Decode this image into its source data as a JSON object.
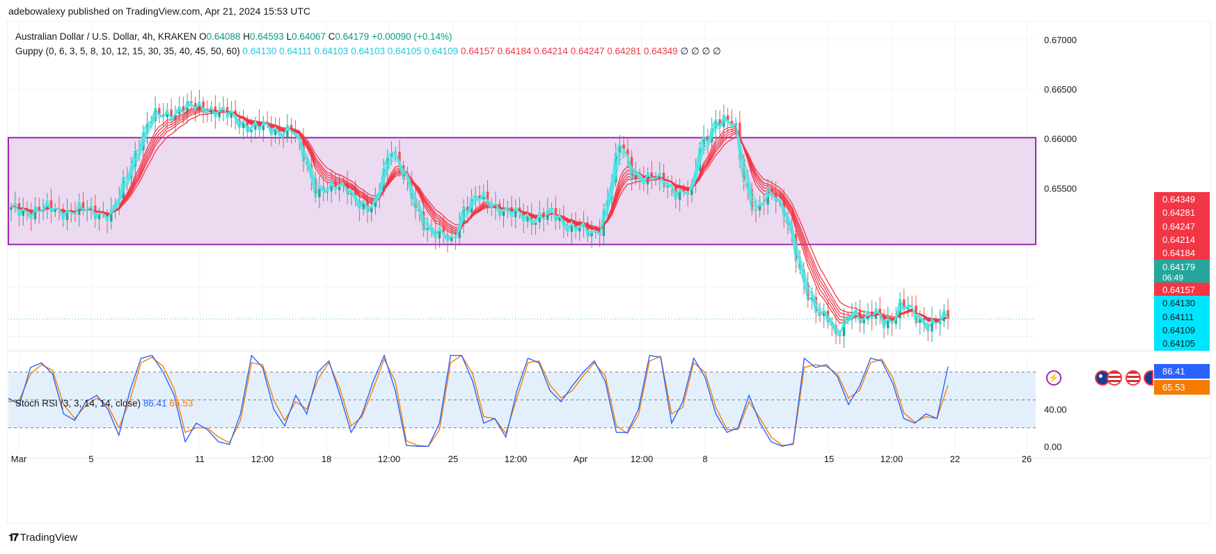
{
  "publisher": "adebowalexy published on TradingView.com, Apr 21, 2024 15:53 UTC",
  "logo": {
    "text": "TradingView",
    "icon": "tradingview-logo-icon"
  },
  "legend_main": {
    "symbol": "Australian Dollar / U.S. Dollar, 4h, KRAKEN",
    "o_label": "O",
    "o": "0.64088",
    "h_label": "H",
    "h": "0.64593",
    "l_label": "L",
    "l": "0.64067",
    "c_label": "C",
    "c": "0.64179",
    "change": "+0.00090 (+0.14%)"
  },
  "legend_guppy": {
    "name": "Guppy (0, 6, 3, 5, 8, 10, 12, 15, 30, 35, 40, 45, 50, 60)",
    "short_values": [
      "0.64130",
      "0.64111",
      "0.64103",
      "0.64103",
      "0.64105",
      "0.64109"
    ],
    "long_values": [
      "0.64157",
      "0.64184",
      "0.64214",
      "0.64247",
      "0.64281",
      "0.64349"
    ],
    "empty_values": [
      "∅",
      "∅",
      "∅",
      "∅"
    ]
  },
  "legend_rsi": {
    "name": "Stoch RSI (3, 3, 14, 14, close)",
    "k": "86.41",
    "d": "65.53"
  },
  "price_tags": [
    {
      "text": "0.64349",
      "color": "#f23645"
    },
    {
      "text": "0.64281",
      "color": "#f23645"
    },
    {
      "text": "0.64247",
      "color": "#f23645"
    },
    {
      "text": "0.64214",
      "color": "#f23645"
    },
    {
      "text": "0.64184",
      "color": "#f23645"
    },
    {
      "text": "0.64179",
      "color": "#26a69a"
    },
    {
      "text": "06:49",
      "color": "#26a69a"
    },
    {
      "text": "0.64157",
      "color": "#f23645"
    },
    {
      "text": "0.64130",
      "color": "#00e5ff"
    },
    {
      "text": "0.64111",
      "color": "#00e5ff"
    },
    {
      "text": "0.64109",
      "color": "#00e5ff"
    },
    {
      "text": "0.64105",
      "color": "#00e5ff"
    }
  ],
  "rsi_tags": [
    {
      "text": "86.41",
      "color": "#2962ff"
    },
    {
      "text": "65.53",
      "color": "#f57c00"
    }
  ],
  "colors": {
    "bull": "#26a69a",
    "bear": "#ef5350",
    "short_ema": "#4ee6e6",
    "long_ema": "#f23645",
    "zone_fill": "#e9d3ee",
    "zone_border": "#9c27b0",
    "rsi_k": "#2962ff",
    "rsi_d": "#f57c00"
  },
  "chart_data": [
    {
      "type": "candlestick",
      "title": "Australian Dollar / U.S. Dollar, 4h, KRAKEN",
      "y_ticks": [
        "0.67000",
        "0.66500",
        "0.66000",
        "0.65500"
      ],
      "ylim": [
        0.6387,
        0.6719
      ],
      "x_ticks": [
        "Mar",
        "5",
        "11",
        "12:00",
        "18",
        "12:00",
        "25",
        "12:00",
        "Apr",
        "12:00",
        "8",
        "15",
        "12:00",
        "22",
        "26"
      ],
      "zone": {
        "top": 0.6601,
        "bottom": 0.6493
      },
      "last_price": 0.64179,
      "close_path": [
        [
          0,
          0.6527
        ],
        [
          10,
          0.6528
        ],
        [
          22,
          0.6526
        ],
        [
          25,
          0.6523
        ],
        [
          27,
          0.654
        ],
        [
          32,
          0.6598
        ],
        [
          35,
          0.662
        ],
        [
          42,
          0.663
        ],
        [
          49,
          0.6632
        ],
        [
          53,
          0.6625
        ],
        [
          60,
          0.6612
        ],
        [
          67,
          0.6608
        ],
        [
          70,
          0.661
        ],
        [
          73,
          0.658
        ],
        [
          76,
          0.655
        ],
        [
          80,
          0.6548
        ],
        [
          84,
          0.6552
        ],
        [
          86,
          0.654
        ],
        [
          89,
          0.6525
        ],
        [
          91,
          0.6533
        ],
        [
          93,
          0.657
        ],
        [
          95,
          0.6595
        ],
        [
          98,
          0.656
        ],
        [
          101,
          0.653
        ],
        [
          105,
          0.6505
        ],
        [
          108,
          0.65
        ],
        [
          110,
          0.6495
        ],
        [
          113,
          0.653
        ],
        [
          117,
          0.654
        ],
        [
          120,
          0.6535
        ],
        [
          125,
          0.6523
        ],
        [
          130,
          0.652
        ],
        [
          135,
          0.6523
        ],
        [
          138,
          0.6515
        ],
        [
          142,
          0.651
        ],
        [
          145,
          0.65
        ],
        [
          147,
          0.651
        ],
        [
          150,
          0.656
        ],
        [
          152,
          0.6595
        ],
        [
          155,
          0.6565
        ],
        [
          160,
          0.656
        ],
        [
          166,
          0.6548
        ],
        [
          170,
          0.6545
        ],
        [
          172,
          0.659
        ],
        [
          176,
          0.662
        ],
        [
          179,
          0.6615
        ],
        [
          181,
          0.6608
        ],
        [
          183,
          0.656
        ],
        [
          186,
          0.6525
        ],
        [
          188,
          0.6535
        ],
        [
          190,
          0.6545
        ],
        [
          193,
          0.653
        ],
        [
          195,
          0.65
        ],
        [
          197,
          0.646
        ],
        [
          199,
          0.644
        ],
        [
          201,
          0.643
        ],
        [
          204,
          0.642
        ],
        [
          206,
          0.6395
        ],
        [
          208,
          0.641
        ],
        [
          210,
          0.643
        ],
        [
          212,
          0.642
        ],
        [
          214,
          0.6418
        ],
        [
          216,
          0.6422
        ],
        [
          218,
          0.6415
        ],
        [
          220,
          0.6418
        ],
        [
          222,
          0.6432
        ],
        [
          224,
          0.6428
        ],
        [
          226,
          0.6418
        ],
        [
          228,
          0.6414
        ],
        [
          232,
          0.6416
        ],
        [
          234,
          0.6418
        ]
      ],
      "guppy_short": [
        0.6413,
        0.64111,
        0.64103,
        0.64103,
        0.64105,
        0.64109
      ],
      "guppy_long": [
        0.64157,
        0.64184,
        0.64214,
        0.64247,
        0.64281,
        0.64349
      ]
    },
    {
      "type": "line",
      "title": "Stoch RSI (3, 3, 14, 14, close)",
      "y_ticks": [
        "40.00",
        "0.00"
      ],
      "ylim": [
        -8,
        100
      ],
      "band": [
        20,
        80
      ],
      "series": [
        {
          "name": "K",
          "values": [
            52,
            45,
            85,
            90,
            78,
            35,
            28,
            48,
            55,
            40,
            12,
            60,
            95,
            98,
            80,
            55,
            5,
            25,
            18,
            5,
            2,
            35,
            98,
            85,
            40,
            22,
            55,
            35,
            80,
            92,
            55,
            15,
            35,
            70,
            98,
            60,
            1,
            0,
            0,
            25,
            98,
            98,
            70,
            25,
            30,
            10,
            60,
            95,
            90,
            60,
            48,
            65,
            80,
            92,
            70,
            15,
            15,
            40,
            98,
            96,
            25,
            48,
            95,
            75,
            35,
            15,
            20,
            55,
            25,
            5,
            0,
            3,
            95,
            85,
            88,
            75,
            45,
            65,
            95,
            92,
            68,
            30,
            25,
            35,
            30,
            86
          ]
        },
        {
          "name": "D",
          "values": [
            48,
            50,
            78,
            88,
            82,
            45,
            30,
            44,
            52,
            44,
            20,
            50,
            90,
            96,
            86,
            62,
            15,
            20,
            20,
            10,
            4,
            28,
            90,
            88,
            50,
            28,
            48,
            40,
            72,
            90,
            62,
            22,
            32,
            62,
            94,
            70,
            6,
            1,
            0,
            18,
            90,
            98,
            78,
            32,
            30,
            14,
            52,
            90,
            92,
            66,
            52,
            60,
            76,
            90,
            76,
            22,
            14,
            34,
            92,
            97,
            35,
            42,
            90,
            80,
            42,
            18,
            18,
            48,
            30,
            10,
            1,
            2,
            85,
            88,
            86,
            78,
            52,
            60,
            90,
            94,
            74,
            36,
            26,
            32,
            30,
            66
          ]
        }
      ]
    }
  ]
}
